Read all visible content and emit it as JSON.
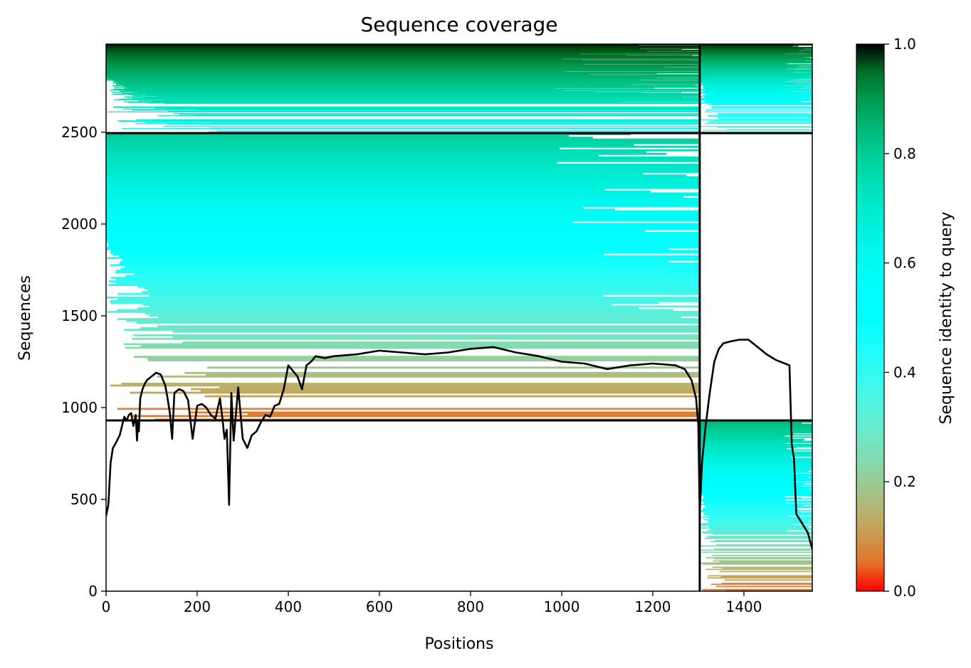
{
  "chart_data": {
    "type": "heatmap",
    "title": "Sequence coverage",
    "xlabel": "Positions",
    "ylabel": "Sequences",
    "xlim": [
      0,
      1550
    ],
    "ylim": [
      0,
      2980
    ],
    "x_ticks": [
      0,
      200,
      400,
      600,
      800,
      1000,
      1200,
      1400
    ],
    "y_ticks": [
      0,
      500,
      1000,
      1500,
      2000,
      2500
    ],
    "colorbar": {
      "label": "Sequence identity to query",
      "range": [
        0.0,
        1.0
      ],
      "ticks": [
        0.0,
        0.2,
        0.4,
        0.6,
        0.8,
        1.0
      ],
      "colormap": "rainbow_r"
    },
    "chain_boundary_x": [
      1303
    ],
    "group_boundary_y": [
      930,
      2495
    ],
    "blocks": [
      {
        "x": [
          0,
          1303
        ],
        "y": [
          2495,
          2980
        ],
        "identity_top": 1.0,
        "identity_bottom": 0.6
      },
      {
        "x": [
          1303,
          1550
        ],
        "y": [
          2495,
          2980
        ],
        "identity_top": 1.0,
        "identity_bottom": 0.3
      },
      {
        "x": [
          0,
          1303
        ],
        "y": [
          930,
          2495
        ],
        "identity_top": 0.8,
        "identity_bottom": 0.05
      },
      {
        "x": [
          1303,
          1550
        ],
        "y": [
          0,
          930
        ],
        "identity_top": 0.85,
        "identity_bottom": 0.05
      }
    ],
    "coverage_line": {
      "x": [
        0,
        5,
        10,
        15,
        20,
        30,
        40,
        45,
        50,
        55,
        60,
        65,
        68,
        70,
        72,
        75,
        80,
        85,
        90,
        100,
        110,
        120,
        130,
        135,
        140,
        145,
        150,
        160,
        170,
        180,
        190,
        200,
        210,
        220,
        230,
        240,
        250,
        255,
        260,
        265,
        270,
        275,
        280,
        290,
        300,
        310,
        320,
        330,
        340,
        350,
        360,
        370,
        380,
        390,
        400,
        410,
        420,
        430,
        440,
        450,
        460,
        480,
        500,
        550,
        600,
        650,
        700,
        750,
        800,
        850,
        900,
        950,
        1000,
        1050,
        1100,
        1150,
        1200,
        1250,
        1270,
        1285,
        1295,
        1300,
        1303,
        1308,
        1315,
        1325,
        1335,
        1345,
        1355,
        1370,
        1390,
        1410,
        1430,
        1450,
        1470,
        1490,
        1500,
        1505,
        1510,
        1515,
        1520,
        1530,
        1540,
        1550
      ],
      "y": [
        410,
        470,
        700,
        780,
        800,
        850,
        950,
        930,
        960,
        970,
        900,
        960,
        820,
        930,
        870,
        1050,
        1100,
        1130,
        1150,
        1170,
        1190,
        1180,
        1120,
        1050,
        970,
        830,
        1080,
        1100,
        1090,
        1040,
        830,
        1010,
        1020,
        1000,
        960,
        940,
        1050,
        950,
        830,
        880,
        470,
        1080,
        820,
        1110,
        830,
        780,
        850,
        870,
        920,
        960,
        950,
        1010,
        1020,
        1100,
        1230,
        1200,
        1170,
        1100,
        1230,
        1250,
        1280,
        1270,
        1280,
        1290,
        1310,
        1300,
        1290,
        1300,
        1320,
        1330,
        1300,
        1280,
        1250,
        1240,
        1210,
        1230,
        1240,
        1230,
        1210,
        1150,
        1050,
        900,
        420,
        700,
        880,
        1080,
        1250,
        1320,
        1350,
        1360,
        1370,
        1370,
        1330,
        1290,
        1260,
        1240,
        1230,
        800,
        720,
        420,
        400,
        360,
        320,
        230
      ]
    }
  }
}
